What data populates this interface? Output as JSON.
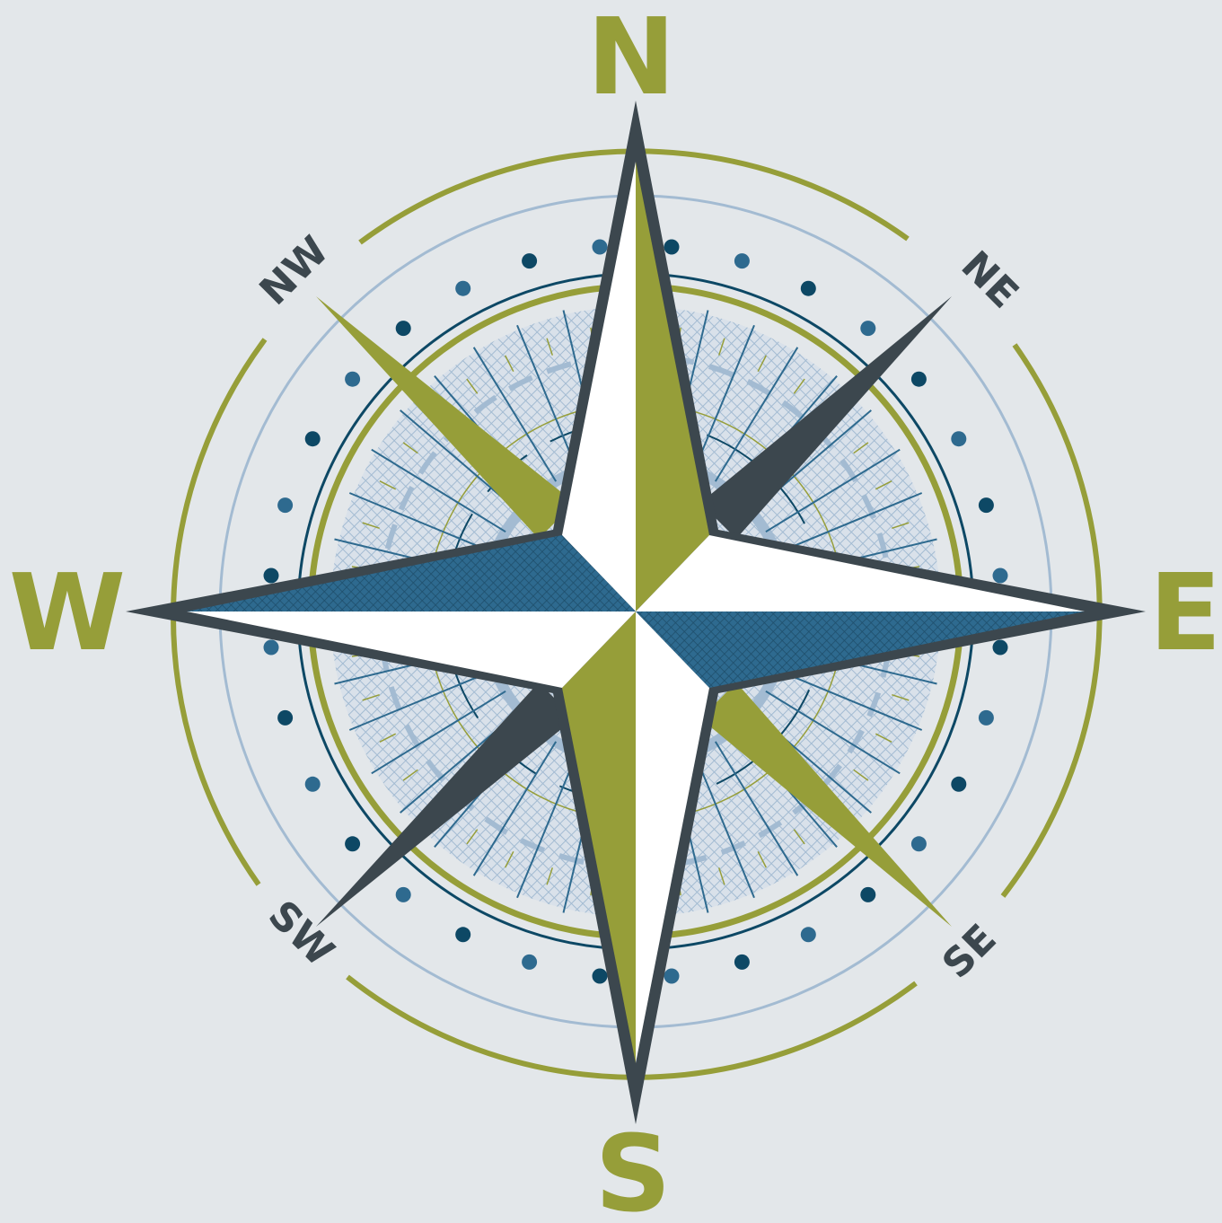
{
  "compass": {
    "labels": {
      "north": "N",
      "south": "S",
      "east": "E",
      "west": "W",
      "northeast": "NE",
      "northwest": "NW",
      "southeast": "SE",
      "southwest": "SW"
    },
    "colors": {
      "background": "#e3e7ea",
      "olive": "#969e39",
      "slate": "#3c474e",
      "navy": "#0d4865",
      "steel_blue": "#2e6a8f",
      "light_blue": "#a3bbd2",
      "white": "#ffffff"
    }
  }
}
